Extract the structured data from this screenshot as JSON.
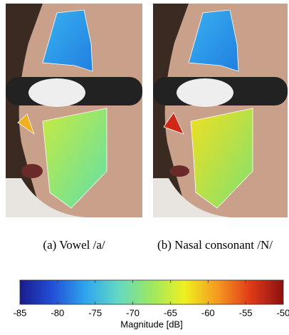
{
  "panels": [
    {
      "caption": "(a) Vowel /a/"
    },
    {
      "caption": "(b) Nasal consonant /N/"
    }
  ],
  "colorbar": {
    "label": "Magnitude [dB]",
    "lim": [
      -85,
      -50
    ],
    "ticks": [
      -85,
      -80,
      -75,
      -70,
      -65,
      -60,
      -55,
      -50
    ],
    "colormap": [
      "#1a1a8c",
      "#2250d8",
      "#2fa6ee",
      "#63d9c2",
      "#9be860",
      "#eef020",
      "#f59a20",
      "#e03a18",
      "#8c1010"
    ]
  }
}
